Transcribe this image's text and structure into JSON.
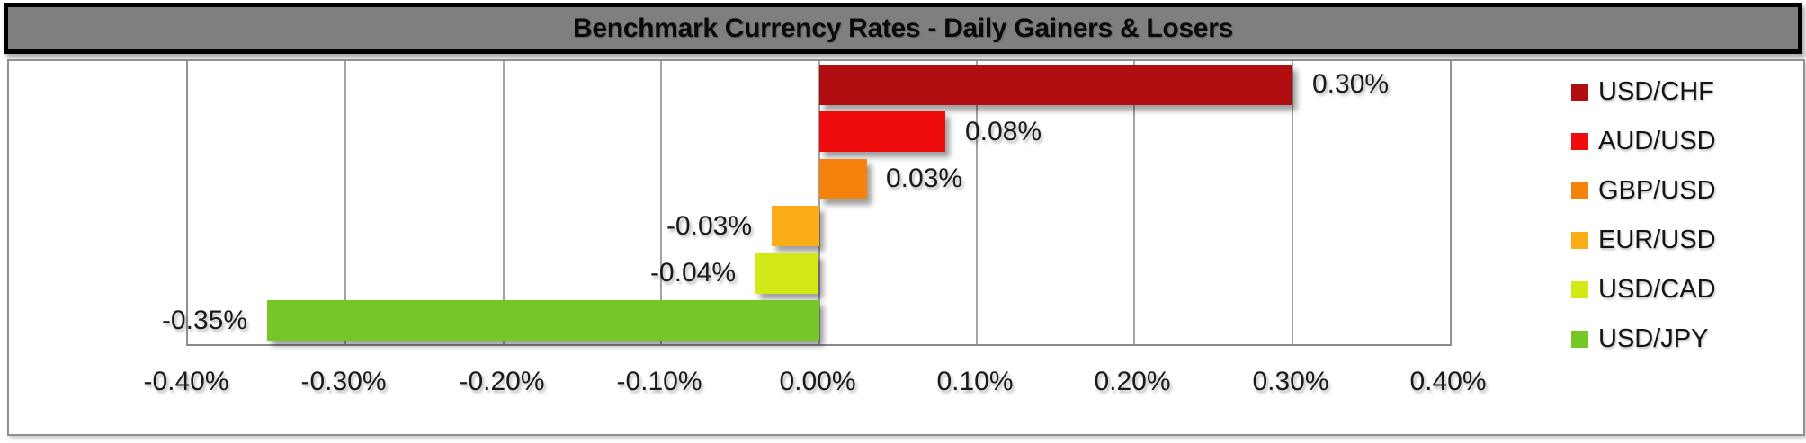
{
  "title": "Benchmark Currency Rates - Daily Gainers & Losers",
  "colors": {
    "title_bar_fill": "#7f7f7f",
    "title_bar_border": "#000000",
    "title_text": "#0a0a0a",
    "chart_border": "#8f8f8f",
    "gridline": "#a3a3a3",
    "label_text": "#1a1a1a"
  },
  "chart_data": {
    "type": "bar",
    "orientation": "horizontal",
    "title": "Benchmark Currency Rates - Daily Gainers & Losers",
    "categories": [
      "USD/CHF",
      "AUD/USD",
      "GBP/USD",
      "EUR/USD",
      "USD/CAD",
      "USD/JPY"
    ],
    "values": [
      0.3,
      0.08,
      0.03,
      -0.03,
      -0.04,
      -0.35
    ],
    "value_labels": [
      "0.30%",
      "0.08%",
      "0.03%",
      "-0.03%",
      "-0.04%",
      "-0.35%"
    ],
    "bar_colors": [
      "#b00e10",
      "#ee0c0c",
      "#f5820d",
      "#fbad18",
      "#d3e817",
      "#77c627"
    ],
    "unit": "%",
    "xlabel": "",
    "ylabel": "",
    "xlim": [
      -0.4,
      0.4
    ],
    "x_tick_values": [
      -0.4,
      -0.3,
      -0.2,
      -0.1,
      0.0,
      0.1,
      0.2,
      0.3,
      0.4
    ],
    "x_tick_labels": [
      "-0.40%",
      "-0.30%",
      "-0.20%",
      "-0.10%",
      "0.00%",
      "0.10%",
      "0.20%",
      "0.30%",
      "0.40%"
    ],
    "grid": true,
    "legend_position": "right",
    "legend": [
      {
        "label": "USD/CHF",
        "color": "#b00e10"
      },
      {
        "label": "AUD/USD",
        "color": "#ee0c0c"
      },
      {
        "label": "GBP/USD",
        "color": "#f5820d"
      },
      {
        "label": "EUR/USD",
        "color": "#fbad18"
      },
      {
        "label": "USD/CAD",
        "color": "#d3e817"
      },
      {
        "label": "USD/JPY",
        "color": "#77c627"
      }
    ]
  }
}
